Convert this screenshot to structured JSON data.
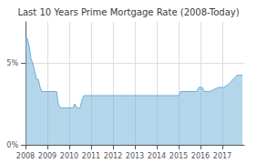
{
  "chart_data": {
    "type": "area",
    "title": "Last 10 Years Prime Mortgage Rate (2008-Today)",
    "x": [
      2008.0,
      2008.08,
      2008.17,
      2008.25,
      2008.33,
      2008.42,
      2008.5,
      2008.58,
      2008.67,
      2008.75,
      2008.83,
      2008.92,
      2009.0,
      2009.42,
      2009.5,
      2009.58,
      2009.67,
      2009.75,
      2009.83,
      2009.92,
      2010.0,
      2010.17,
      2010.25,
      2010.33,
      2010.42,
      2010.5,
      2010.58,
      2010.67,
      2010.75,
      2010.83,
      2010.92,
      2011.0,
      2012.0,
      2013.0,
      2014.0,
      2014.92,
      2015.0,
      2015.08,
      2015.83,
      2015.92,
      2016.0,
      2016.08,
      2016.17,
      2016.42,
      2016.83,
      2016.92,
      2017.0,
      2017.08,
      2017.33,
      2017.5,
      2017.67,
      2017.92
    ],
    "values": [
      6.5,
      6.5,
      6.0,
      5.25,
      5.0,
      4.5,
      4.0,
      4.0,
      3.5,
      3.25,
      3.25,
      3.25,
      3.25,
      3.25,
      2.5,
      2.25,
      2.25,
      2.25,
      2.25,
      2.25,
      2.25,
      2.25,
      2.5,
      2.25,
      2.25,
      2.25,
      2.75,
      3.0,
      3.0,
      3.0,
      3.0,
      3.0,
      3.0,
      3.0,
      3.0,
      3.0,
      3.0,
      3.25,
      3.25,
      3.5,
      3.5,
      3.5,
      3.25,
      3.25,
      3.5,
      3.5,
      3.5,
      3.5,
      3.75,
      4.0,
      4.25,
      4.25
    ],
    "color": "#6baed6",
    "xlim": [
      2008,
      2018
    ],
    "xticks": [
      2008,
      2009,
      2010,
      2011,
      2012,
      2013,
      2014,
      2015,
      2016,
      2017
    ],
    "ylim": [
      0,
      7.5
    ],
    "yticks": [
      {
        "value": 0,
        "label": "0%"
      },
      {
        "value": 5,
        "label": "5%"
      }
    ],
    "grid": true
  }
}
